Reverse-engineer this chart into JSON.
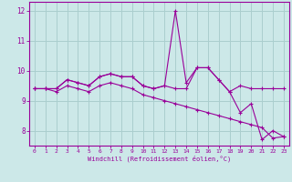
{
  "xlabel": "Windchill (Refroidissement éolien,°C)",
  "x": [
    0,
    1,
    2,
    3,
    4,
    5,
    6,
    7,
    8,
    9,
    10,
    11,
    12,
    13,
    14,
    15,
    16,
    17,
    18,
    19,
    20,
    21,
    22,
    23
  ],
  "series1": [
    9.4,
    9.4,
    9.4,
    9.7,
    9.6,
    9.5,
    9.8,
    9.9,
    9.8,
    9.8,
    9.5,
    9.4,
    9.5,
    9.4,
    9.4,
    10.1,
    10.1,
    9.7,
    9.3,
    9.5,
    9.4,
    9.4,
    9.4,
    9.4
  ],
  "series2": [
    9.4,
    9.4,
    9.4,
    9.7,
    9.6,
    9.5,
    9.8,
    9.9,
    9.8,
    9.8,
    9.5,
    9.4,
    9.5,
    12.0,
    9.6,
    10.1,
    10.1,
    9.7,
    9.3,
    8.6,
    8.9,
    7.7,
    8.0,
    7.8
  ],
  "series3": [
    9.4,
    9.4,
    9.3,
    9.5,
    9.4,
    9.3,
    9.5,
    9.6,
    9.5,
    9.4,
    9.2,
    9.1,
    9.0,
    8.9,
    8.8,
    8.7,
    8.6,
    8.5,
    8.4,
    8.3,
    8.2,
    8.1,
    7.75,
    7.8
  ],
  "line_color": "#990099",
  "bg_color": "#cce8e8",
  "grid_color": "#aacece",
  "ylim": [
    7.5,
    12.3
  ],
  "xlim": [
    -0.5,
    23.5
  ],
  "yticks": [
    8,
    9,
    10,
    11,
    12
  ],
  "xticks": [
    0,
    1,
    2,
    3,
    4,
    5,
    6,
    7,
    8,
    9,
    10,
    11,
    12,
    13,
    14,
    15,
    16,
    17,
    18,
    19,
    20,
    21,
    22,
    23
  ]
}
